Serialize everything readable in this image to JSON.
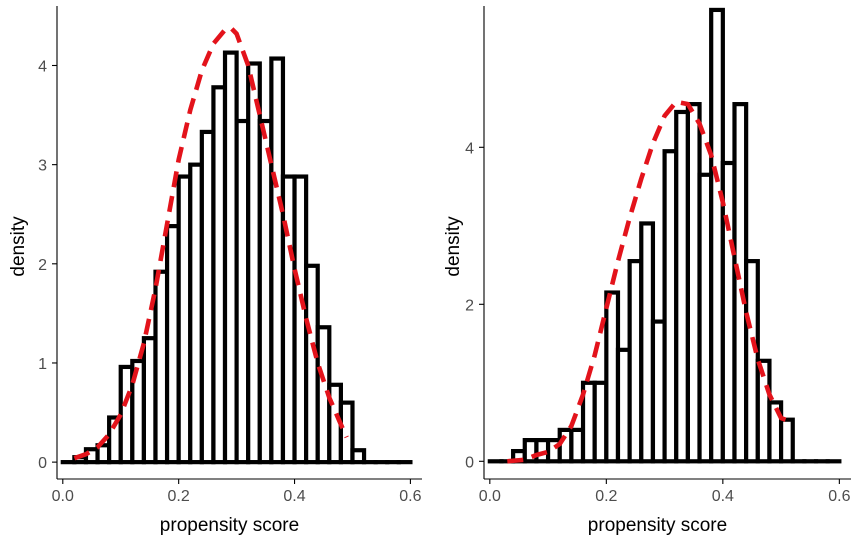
{
  "colors": {
    "bars": "#000000",
    "density": "#e3131b",
    "axis": "#000000",
    "tick_text": "#4d4d4d"
  },
  "chart_data": [
    {
      "type": "bar",
      "title": "",
      "xlabel": "propensity score",
      "ylabel": "density",
      "xlim": [
        -0.01,
        0.62
      ],
      "ylim": [
        -0.15,
        4.6
      ],
      "xticks": [
        0.0,
        0.2,
        0.4,
        0.6
      ],
      "xtick_labels": [
        "0.0",
        "0.2",
        "0.4",
        "0.6"
      ],
      "yticks": [
        0,
        1,
        2,
        3,
        4
      ],
      "ytick_labels": [
        "0",
        "1",
        "2",
        "3",
        "4"
      ],
      "grid": false,
      "bin_width": 0.02,
      "bin_starts": [
        0.0,
        0.02,
        0.04,
        0.06,
        0.08,
        0.1,
        0.12,
        0.14,
        0.16,
        0.18,
        0.2,
        0.22,
        0.24,
        0.26,
        0.28,
        0.3,
        0.32,
        0.34,
        0.36,
        0.38,
        0.4,
        0.42,
        0.44,
        0.46,
        0.48,
        0.5,
        0.52,
        0.54,
        0.56,
        0.58
      ],
      "values": [
        0,
        0.05,
        0.13,
        0.17,
        0.45,
        0.96,
        1.02,
        1.25,
        1.92,
        2.38,
        2.88,
        3.0,
        3.33,
        3.78,
        4.13,
        3.44,
        4.02,
        3.44,
        4.07,
        2.88,
        2.88,
        1.98,
        1.36,
        0.78,
        0.6,
        0.12,
        0,
        0,
        0,
        0
      ],
      "density_curve": {
        "x": [
          0.02,
          0.04,
          0.06,
          0.08,
          0.1,
          0.12,
          0.14,
          0.16,
          0.18,
          0.2,
          0.22,
          0.24,
          0.26,
          0.28,
          0.29,
          0.3,
          0.32,
          0.34,
          0.36,
          0.38,
          0.4,
          0.42,
          0.44,
          0.46,
          0.48,
          0.49
        ],
        "y": [
          0.04,
          0.08,
          0.15,
          0.28,
          0.48,
          0.78,
          1.2,
          1.75,
          2.4,
          3.05,
          3.55,
          3.95,
          4.22,
          4.36,
          4.38,
          4.32,
          4.0,
          3.5,
          3.0,
          2.5,
          1.95,
          1.45,
          1.0,
          0.65,
          0.38,
          0.25
        ]
      }
    },
    {
      "type": "bar",
      "title": "",
      "xlabel": "propensity score",
      "ylabel": "density",
      "xlim": [
        -0.01,
        0.62
      ],
      "ylim": [
        -0.2,
        5.8
      ],
      "xticks": [
        0.0,
        0.2,
        0.4,
        0.6
      ],
      "xtick_labels": [
        "0.0",
        "0.2",
        "0.4",
        "0.6"
      ],
      "yticks": [
        0,
        2,
        4
      ],
      "ytick_labels": [
        "0",
        "2",
        "4"
      ],
      "grid": false,
      "bin_width": 0.02,
      "bin_starts": [
        0.0,
        0.02,
        0.04,
        0.06,
        0.08,
        0.1,
        0.12,
        0.14,
        0.16,
        0.18,
        0.2,
        0.22,
        0.24,
        0.26,
        0.28,
        0.3,
        0.32,
        0.34,
        0.36,
        0.38,
        0.4,
        0.42,
        0.44,
        0.46,
        0.48,
        0.5,
        0.52,
        0.54,
        0.56,
        0.58
      ],
      "values": [
        0,
        0,
        0.13,
        0.27,
        0.27,
        0.27,
        0.4,
        0.4,
        1.0,
        1.0,
        2.15,
        1.42,
        2.55,
        3.03,
        1.78,
        3.95,
        4.45,
        4.55,
        3.65,
        5.75,
        3.8,
        4.55,
        2.55,
        1.28,
        0.75,
        0.53,
        0,
        0,
        0,
        0
      ],
      "density_curve": {
        "x": [
          0.03,
          0.06,
          0.08,
          0.1,
          0.12,
          0.14,
          0.16,
          0.18,
          0.2,
          0.22,
          0.24,
          0.26,
          0.28,
          0.3,
          0.32,
          0.34,
          0.36,
          0.38,
          0.4,
          0.42,
          0.44,
          0.46,
          0.48,
          0.5,
          0.52
        ],
        "y": [
          0.0,
          0.02,
          0.08,
          0.12,
          0.22,
          0.45,
          0.85,
          1.35,
          1.95,
          2.55,
          3.1,
          3.6,
          4.05,
          4.4,
          4.58,
          4.55,
          4.3,
          3.9,
          3.3,
          2.6,
          1.9,
          1.3,
          0.85,
          0.55,
          0.5
        ]
      }
    }
  ]
}
